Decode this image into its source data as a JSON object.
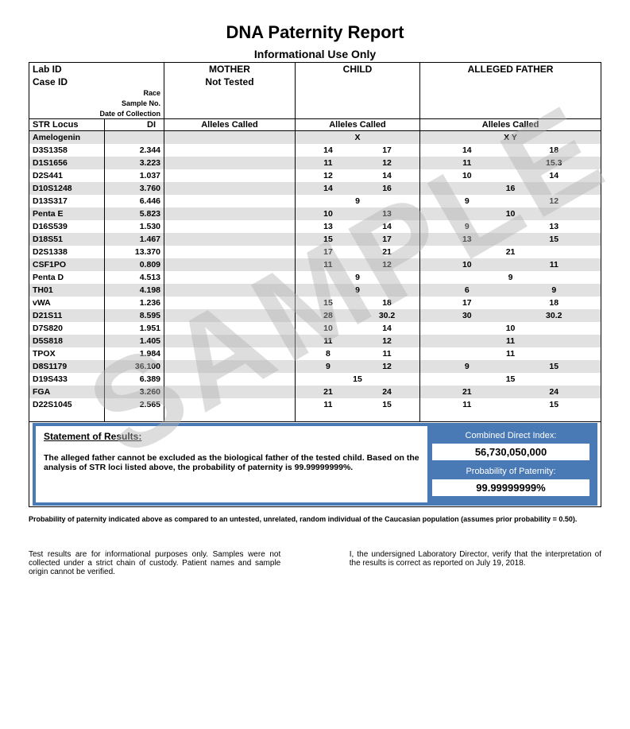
{
  "watermark": "SAMPLE",
  "title": "DNA Paternity Report",
  "subtitle": "Informational Use Only",
  "header": {
    "lab_id_label": "Lab ID",
    "case_id_label": "Case ID",
    "mother_label": "MOTHER",
    "child_label": "CHILD",
    "father_label": "ALLEGED FATHER",
    "not_tested": "Not Tested",
    "race_label": "Race",
    "sample_no_label": "Sample No.",
    "date_label": "Date of Collection"
  },
  "columns": {
    "locus": "STR Locus",
    "di": "DI",
    "alleles": "Alleles Called"
  },
  "rows": [
    {
      "locus": "Amelogenin",
      "di": "",
      "m": [
        "",
        ""
      ],
      "c_single": "X",
      "c": [
        "",
        ""
      ],
      "f_single": "X Y",
      "f": [
        "",
        ""
      ]
    },
    {
      "locus": "D3S1358",
      "di": "2.344",
      "m": [
        "",
        ""
      ],
      "c": [
        "14",
        "17"
      ],
      "f": [
        "14",
        "18"
      ]
    },
    {
      "locus": "D1S1656",
      "di": "3.223",
      "m": [
        "",
        ""
      ],
      "c": [
        "11",
        "12"
      ],
      "f": [
        "11",
        "15.3"
      ]
    },
    {
      "locus": "D2S441",
      "di": "1.037",
      "m": [
        "",
        ""
      ],
      "c": [
        "12",
        "14"
      ],
      "f": [
        "10",
        "14"
      ]
    },
    {
      "locus": "D10S1248",
      "di": "3.760",
      "m": [
        "",
        ""
      ],
      "c": [
        "14",
        "16"
      ],
      "f_single": "16",
      "f": [
        "",
        ""
      ]
    },
    {
      "locus": "D13S317",
      "di": "6.446",
      "m": [
        "",
        ""
      ],
      "c_single": "9",
      "c": [
        "",
        ""
      ],
      "f": [
        "9",
        "12"
      ]
    },
    {
      "locus": "Penta E",
      "di": "5.823",
      "m": [
        "",
        ""
      ],
      "c": [
        "10",
        "13"
      ],
      "f_single": "10",
      "f": [
        "",
        ""
      ]
    },
    {
      "locus": "D16S539",
      "di": "1.530",
      "m": [
        "",
        ""
      ],
      "c": [
        "13",
        "14"
      ],
      "f": [
        "9",
        "13"
      ]
    },
    {
      "locus": "D18S51",
      "di": "1.467",
      "m": [
        "",
        ""
      ],
      "c": [
        "15",
        "17"
      ],
      "f": [
        "13",
        "15"
      ]
    },
    {
      "locus": "D2S1338",
      "di": "13.370",
      "m": [
        "",
        ""
      ],
      "c": [
        "17",
        "21"
      ],
      "f_single": "21",
      "f": [
        "",
        ""
      ]
    },
    {
      "locus": "CSF1PO",
      "di": "0.809",
      "m": [
        "",
        ""
      ],
      "c": [
        "11",
        "12"
      ],
      "f": [
        "10",
        "11"
      ]
    },
    {
      "locus": "Penta D",
      "di": "4.513",
      "m": [
        "",
        ""
      ],
      "c_single": "9",
      "c": [
        "",
        ""
      ],
      "f_single": "9",
      "f": [
        "",
        ""
      ]
    },
    {
      "locus": "TH01",
      "di": "4.198",
      "m": [
        "",
        ""
      ],
      "c_single": "9",
      "c": [
        "",
        ""
      ],
      "f": [
        "6",
        "9"
      ]
    },
    {
      "locus": "vWA",
      "di": "1.236",
      "m": [
        "",
        ""
      ],
      "c": [
        "15",
        "18"
      ],
      "f": [
        "17",
        "18"
      ]
    },
    {
      "locus": "D21S11",
      "di": "8.595",
      "m": [
        "",
        ""
      ],
      "c": [
        "28",
        "30.2"
      ],
      "f": [
        "30",
        "30.2"
      ]
    },
    {
      "locus": "D7S820",
      "di": "1.951",
      "m": [
        "",
        ""
      ],
      "c": [
        "10",
        "14"
      ],
      "f_single": "10",
      "f": [
        "",
        ""
      ]
    },
    {
      "locus": "D5S818",
      "di": "1.405",
      "m": [
        "",
        ""
      ],
      "c": [
        "11",
        "12"
      ],
      "f_single": "11",
      "f": [
        "",
        ""
      ]
    },
    {
      "locus": "TPOX",
      "di": "1.984",
      "m": [
        "",
        ""
      ],
      "c": [
        "8",
        "11"
      ],
      "f_single": "11",
      "f": [
        "",
        ""
      ]
    },
    {
      "locus": "D8S1179",
      "di": "36.100",
      "m": [
        "",
        ""
      ],
      "c": [
        "9",
        "12"
      ],
      "f": [
        "9",
        "15"
      ]
    },
    {
      "locus": "D19S433",
      "di": "6.389",
      "m": [
        "",
        ""
      ],
      "c_single": "15",
      "c": [
        "",
        ""
      ],
      "f_single": "15",
      "f": [
        "",
        ""
      ]
    },
    {
      "locus": "FGA",
      "di": "3.260",
      "m": [
        "",
        ""
      ],
      "c": [
        "21",
        "24"
      ],
      "f": [
        "21",
        "24"
      ]
    },
    {
      "locus": "D22S1045",
      "di": "2.565",
      "m": [
        "",
        ""
      ],
      "c": [
        "11",
        "15"
      ],
      "f": [
        "11",
        "15"
      ]
    }
  ],
  "results": {
    "stmt_title": "Statement of Results:",
    "stmt_body": "The alleged father cannot be excluded as the biological father of the tested child. Based on the analysis of STR loci listed above, the probability of paternity is 99.99999999%.",
    "cdi_label": "Combined Direct Index:",
    "cdi_value": "56,730,050,000",
    "pop_label": "Probability of Paternity:",
    "pop_value": "99.99999999%"
  },
  "footnote": "Probability of paternity indicated above as compared to an untested, unrelated, random individual of the Caucasian population (assumes prior probability = 0.50).",
  "bottom": {
    "left": "Test results are for informational purposes only. Samples were not collected under a strict chain of custody. Patient names and sample origin cannot be verified.",
    "right": "I, the undersigned Laboratory Director, verify that the interpretation of the results is correct as reported on July 19, 2018."
  },
  "colors": {
    "accent": "#4a7ab5",
    "row_alt": "#e1e1e1",
    "border": "#000000",
    "watermark": "rgba(180,180,180,0.45)"
  }
}
